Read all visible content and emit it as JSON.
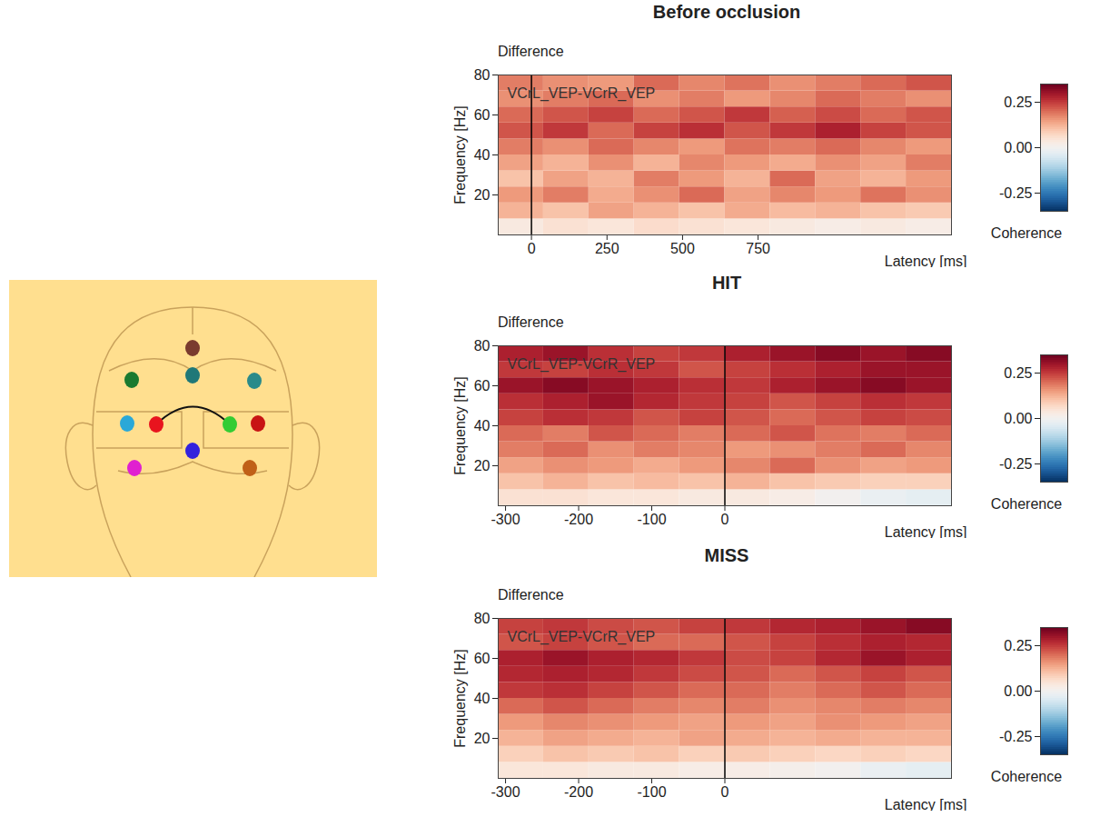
{
  "chart_data": [
    {
      "type": "heatmap",
      "title": "Before occlusion",
      "subtitle": "Difference",
      "annotation": "VCrL_VEP-VCrR_VEP",
      "x_label": "Latency [ms]",
      "y_label": "Frequency [Hz]",
      "xlim": [
        -110,
        1390
      ],
      "xticks": [
        0,
        250,
        500,
        750
      ],
      "ylim": [
        0,
        80
      ],
      "yticks": [
        20,
        40,
        60,
        80
      ],
      "vline": 0,
      "time_bins": [
        -110,
        40,
        190,
        340,
        490,
        640,
        790,
        940,
        1090,
        1240,
        1390
      ],
      "frequency_bins": [
        0,
        8,
        16,
        24,
        32,
        40,
        48,
        56,
        64,
        72,
        80
      ],
      "coherence": [
        [
          0.03,
          0.05,
          0.04,
          0.06,
          0.05,
          0.04,
          0.03,
          0.02,
          0.03,
          0.02
        ],
        [
          0.12,
          0.1,
          0.14,
          0.12,
          0.1,
          0.13,
          0.11,
          0.12,
          0.1,
          0.09
        ],
        [
          0.15,
          0.18,
          0.13,
          0.16,
          0.2,
          0.14,
          0.17,
          0.15,
          0.19,
          0.16
        ],
        [
          0.1,
          0.14,
          0.12,
          0.18,
          0.15,
          0.12,
          0.2,
          0.14,
          0.12,
          0.15
        ],
        [
          0.14,
          0.12,
          0.16,
          0.12,
          0.17,
          0.15,
          0.13,
          0.16,
          0.14,
          0.18
        ],
        [
          0.18,
          0.16,
          0.2,
          0.17,
          0.15,
          0.19,
          0.18,
          0.2,
          0.17,
          0.15
        ],
        [
          0.22,
          0.25,
          0.2,
          0.24,
          0.26,
          0.22,
          0.25,
          0.28,
          0.24,
          0.22
        ],
        [
          0.2,
          0.22,
          0.24,
          0.2,
          0.22,
          0.25,
          0.21,
          0.23,
          0.2,
          0.22
        ],
        [
          0.16,
          0.18,
          0.2,
          0.16,
          0.18,
          0.15,
          0.17,
          0.2,
          0.18,
          0.16
        ],
        [
          0.18,
          0.16,
          0.15,
          0.2,
          0.17,
          0.19,
          0.16,
          0.18,
          0.2,
          0.22
        ]
      ],
      "colorbar": {
        "range": [
          -0.35,
          0.35
        ],
        "ticks": [
          -0.25,
          {
            "value": 0,
            "label": "0.00"
          },
          0.25
        ],
        "label": "Coherence"
      }
    },
    {
      "type": "heatmap",
      "title": "HIT",
      "subtitle": "Difference",
      "annotation": "VCrL_VEP-VCrR_VEP",
      "x_label": "Latency [ms]",
      "y_label": "Frequency [Hz]",
      "xlim": [
        -310,
        310
      ],
      "xticks": [
        -300,
        -200,
        -100,
        0
      ],
      "ylim": [
        0,
        80
      ],
      "yticks": [
        20,
        40,
        60,
        80
      ],
      "vline": 0,
      "time_bins": [
        -310,
        -248,
        -186,
        -124,
        -62,
        0,
        62,
        124,
        186,
        248,
        310
      ],
      "frequency_bins": [
        0,
        8,
        16,
        24,
        32,
        40,
        48,
        56,
        64,
        72,
        80
      ],
      "coherence": [
        [
          0.05,
          0.05,
          0.04,
          0.04,
          0.03,
          0.03,
          0.02,
          0.0,
          -0.02,
          -0.03
        ],
        [
          0.1,
          0.12,
          0.1,
          0.11,
          0.1,
          0.12,
          0.1,
          0.09,
          0.08,
          0.08
        ],
        [
          0.14,
          0.16,
          0.15,
          0.13,
          0.15,
          0.17,
          0.2,
          0.16,
          0.14,
          0.15
        ],
        [
          0.18,
          0.2,
          0.16,
          0.18,
          0.17,
          0.15,
          0.16,
          0.18,
          0.2,
          0.17
        ],
        [
          0.2,
          0.18,
          0.22,
          0.2,
          0.18,
          0.2,
          0.22,
          0.19,
          0.18,
          0.2
        ],
        [
          0.24,
          0.26,
          0.25,
          0.22,
          0.24,
          0.22,
          0.2,
          0.22,
          0.24,
          0.23
        ],
        [
          0.26,
          0.28,
          0.3,
          0.27,
          0.25,
          0.24,
          0.22,
          0.24,
          0.26,
          0.25
        ],
        [
          0.3,
          0.32,
          0.3,
          0.28,
          0.26,
          0.25,
          0.28,
          0.3,
          0.32,
          0.3
        ],
        [
          0.25,
          0.24,
          0.26,
          0.25,
          0.22,
          0.24,
          0.26,
          0.28,
          0.3,
          0.3
        ],
        [
          0.28,
          0.3,
          0.26,
          0.24,
          0.25,
          0.28,
          0.3,
          0.32,
          0.3,
          0.32
        ]
      ],
      "colorbar": {
        "range": [
          -0.35,
          0.35
        ],
        "ticks": [
          -0.25,
          {
            "value": 0,
            "label": "0.00"
          },
          0.25
        ],
        "label": "Coherence"
      }
    },
    {
      "type": "heatmap",
      "title": "MISS",
      "subtitle": "Difference",
      "annotation": "VCrL_VEP-VCrR_VEP",
      "x_label": "Latency [ms]",
      "y_label": "Frequency [Hz]",
      "xlim": [
        -310,
        310
      ],
      "xticks": [
        -300,
        -200,
        -100,
        0
      ],
      "ylim": [
        0,
        80
      ],
      "yticks": [
        20,
        40,
        60,
        80
      ],
      "vline": 0,
      "time_bins": [
        -310,
        -248,
        -186,
        -124,
        -62,
        0,
        62,
        124,
        186,
        248,
        310
      ],
      "frequency_bins": [
        0,
        8,
        16,
        24,
        32,
        40,
        48,
        56,
        64,
        72,
        80
      ],
      "coherence": [
        [
          0.04,
          0.04,
          0.03,
          0.03,
          0.02,
          0.02,
          0.01,
          0.0,
          -0.02,
          -0.03
        ],
        [
          0.08,
          0.1,
          0.09,
          0.1,
          0.08,
          0.09,
          0.08,
          0.07,
          0.08,
          0.07
        ],
        [
          0.12,
          0.14,
          0.13,
          0.12,
          0.14,
          0.13,
          0.12,
          0.13,
          0.12,
          0.12
        ],
        [
          0.15,
          0.17,
          0.16,
          0.15,
          0.14,
          0.15,
          0.14,
          0.16,
          0.15,
          0.14
        ],
        [
          0.2,
          0.22,
          0.2,
          0.18,
          0.17,
          0.18,
          0.16,
          0.17,
          0.18,
          0.17
        ],
        [
          0.25,
          0.26,
          0.24,
          0.22,
          0.2,
          0.2,
          0.18,
          0.2,
          0.22,
          0.2
        ],
        [
          0.27,
          0.28,
          0.27,
          0.25,
          0.23,
          0.22,
          0.2,
          0.22,
          0.24,
          0.22
        ],
        [
          0.28,
          0.3,
          0.28,
          0.27,
          0.25,
          0.23,
          0.24,
          0.27,
          0.3,
          0.28
        ],
        [
          0.22,
          0.24,
          0.22,
          0.2,
          0.2,
          0.22,
          0.24,
          0.26,
          0.28,
          0.27
        ],
        [
          0.24,
          0.25,
          0.23,
          0.22,
          0.24,
          0.25,
          0.27,
          0.28,
          0.3,
          0.32
        ]
      ],
      "colorbar": {
        "range": [
          -0.35,
          0.35
        ],
        "ticks": [
          -0.25,
          {
            "value": 0,
            "label": "0.00"
          },
          0.25
        ],
        "label": "Coherence"
      }
    }
  ]
}
